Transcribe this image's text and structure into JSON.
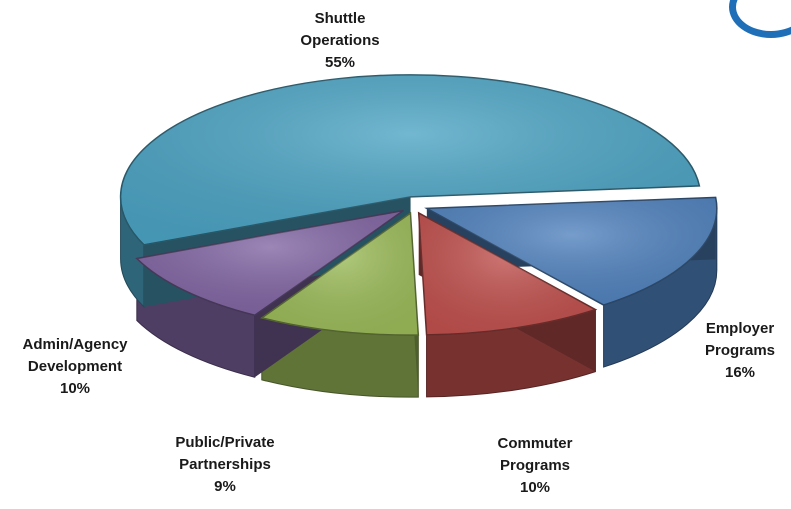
{
  "chart_data": {
    "type": "pie",
    "title": "",
    "style": "3d-exploded",
    "slices": [
      {
        "label_lines": [
          "Shuttle",
          "Operations"
        ],
        "pct_label": "55%",
        "value": 55,
        "color": "#4BA3C3"
      },
      {
        "label_lines": [
          "Employer",
          "Programs"
        ],
        "pct_label": "16%",
        "value": 16,
        "color": "#4F81BD"
      },
      {
        "label_lines": [
          "Commuter",
          "Programs"
        ],
        "pct_label": "10%",
        "value": 10,
        "color": "#C0504D"
      },
      {
        "label_lines": [
          "Public/Private",
          "Partnerships"
        ],
        "pct_label": "9%",
        "value": 9,
        "color": "#9BBB59"
      },
      {
        "label_lines": [
          "Admin/Agency",
          "Development"
        ],
        "pct_label": "10%",
        "value": 10,
        "color": "#8064A2"
      }
    ]
  }
}
